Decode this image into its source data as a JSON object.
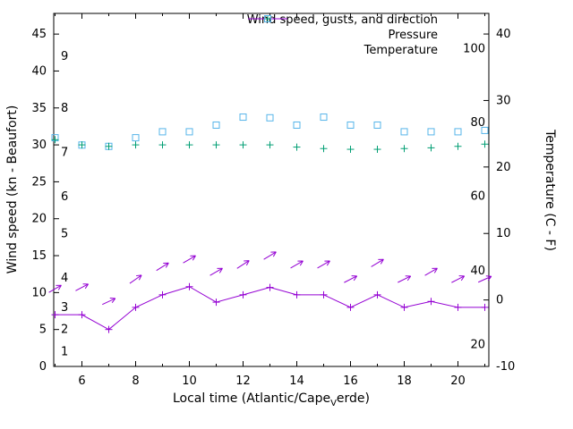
{
  "chart_data": {
    "type": "line",
    "title": "",
    "xlabel": {
      "prefix": "Local time (Atlantic/Cape",
      "subscript": "V",
      "suffix": "erde)"
    },
    "ylabel_left": "Wind speed (kn - Beaufort)",
    "ylabel_right": "Temperature (C - F)",
    "x_range": [
      4.95,
      21.15
    ],
    "x_major_ticks": [
      6,
      8,
      10,
      12,
      14,
      16,
      18,
      20
    ],
    "x_minor_ticks": [
      5,
      7,
      9,
      11,
      13,
      15,
      17,
      19,
      21
    ],
    "y_left_range": [
      0,
      47.8
    ],
    "y_left_ticks": [
      0,
      5,
      10,
      15,
      20,
      25,
      30,
      35,
      40,
      45
    ],
    "y_right_range": [
      -10,
      43.1
    ],
    "y_right_ticks": [
      -10,
      0,
      10,
      20,
      30,
      40
    ],
    "beaufort_scale": [
      {
        "label": "1",
        "kn": 2
      },
      {
        "label": "2",
        "kn": 5
      },
      {
        "label": "3",
        "kn": 8
      },
      {
        "label": "4",
        "kn": 12
      },
      {
        "label": "5",
        "kn": 18
      },
      {
        "label": "6",
        "kn": 23
      },
      {
        "label": "7",
        "kn": 29
      },
      {
        "label": "8",
        "kn": 35
      },
      {
        "label": "9",
        "kn": 42
      }
    ],
    "fahrenheit_scale": [
      {
        "label": "20",
        "c": -6.7
      },
      {
        "label": "40",
        "c": 4.4
      },
      {
        "label": "60",
        "c": 15.6
      },
      {
        "label": "80",
        "c": 26.7
      },
      {
        "label": "100",
        "c": 37.8
      }
    ],
    "colors": {
      "wind": "#9400d3",
      "pressure": "#009e73",
      "temperature": "#56b4e9",
      "axis": "#000000",
      "background": "#ffffff"
    },
    "legend": [
      {
        "label": "Wind speed, gusts, and direction",
        "marker": "line-plus",
        "series": "wind"
      },
      {
        "label": "Pressure",
        "marker": "plus",
        "series": "pressure"
      },
      {
        "label": "Temperature",
        "marker": "square",
        "series": "temperature"
      }
    ],
    "x": [
      5,
      6,
      7,
      8,
      9,
      10,
      11,
      12,
      13,
      14,
      15,
      16,
      17,
      18,
      19,
      20,
      21
    ],
    "series": {
      "wind_speed_kn": [
        7,
        7,
        5,
        8,
        9.7,
        10.8,
        8.7,
        9.7,
        10.7,
        9.7,
        9.7,
        8,
        9.7,
        8,
        8.8,
        8,
        8
      ],
      "gusts_kn": [
        10.5,
        10.7,
        8.8,
        11.8,
        13.5,
        14.5,
        12.8,
        13.8,
        15,
        13.8,
        13.8,
        11.8,
        14,
        11.8,
        12.8,
        11.8,
        11.8
      ],
      "gust_dir_deg": [
        30,
        28,
        25,
        35,
        32,
        30,
        30,
        33,
        31,
        30,
        30,
        27,
        31,
        26,
        30,
        27,
        24
      ],
      "pressure": [
        30.7,
        30,
        29.8,
        30,
        30,
        30,
        30,
        30,
        30,
        29.7,
        29.5,
        29.4,
        29.4,
        29.5,
        29.6,
        29.8,
        30.1
      ],
      "temperature_c": [
        24.4,
        23.3,
        23.1,
        24.4,
        25.3,
        25.3,
        26.3,
        27.5,
        27.4,
        26.3,
        27.5,
        26.3,
        26.3,
        25.3,
        25.3,
        25.3,
        25.5
      ]
    }
  }
}
